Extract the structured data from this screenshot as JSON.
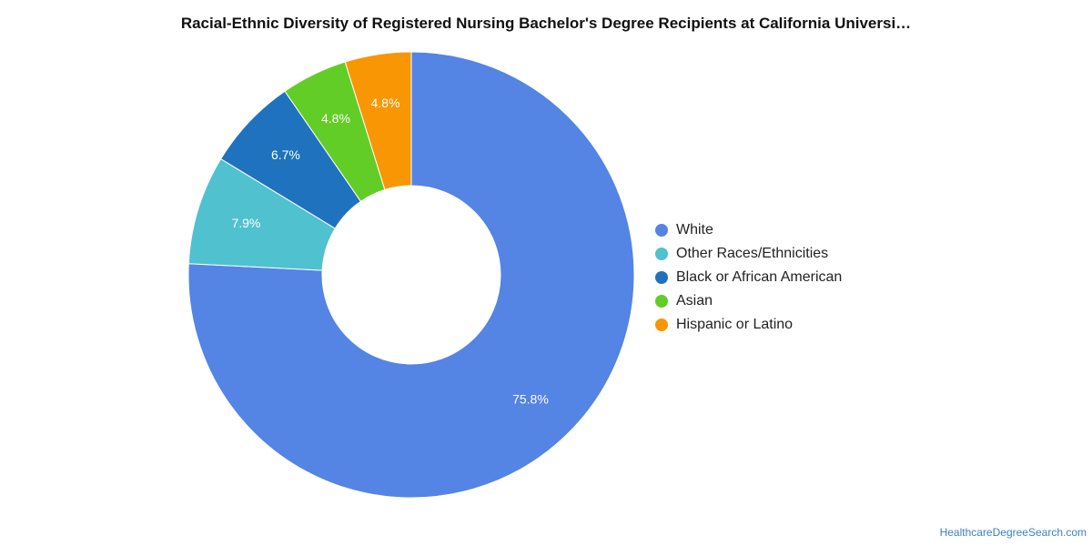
{
  "chart_data": {
    "type": "pie",
    "title": "Racial-Ethnic Diversity of Registered Nursing Bachelor's Degree Recipients at California Universi…",
    "categories": [
      "White",
      "Other Races/Ethnicities",
      "Black or African American",
      "Asian",
      "Hispanic or Latino"
    ],
    "values": [
      75.8,
      7.9,
      6.7,
      4.8,
      4.8
    ],
    "labels": [
      "75.8%",
      "7.9%",
      "6.7%",
      "4.8%",
      "4.8%"
    ],
    "colors": [
      "#5484e4",
      "#4fc1cf",
      "#1f72bd",
      "#62cd26",
      "#f89604"
    ],
    "legend_position": "right",
    "donut": true
  },
  "footer": {
    "source": "HealthcareDegreeSearch.com"
  }
}
